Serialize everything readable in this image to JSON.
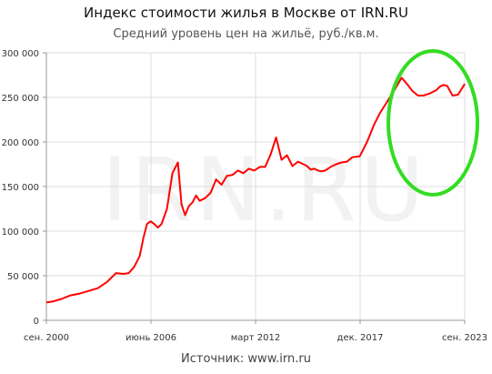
{
  "chart_data": {
    "type": "line",
    "title": "Индекс стоимости жилья в Москве от IRN.RU",
    "subtitle": "Средний уровень цен на жильё, руб./кв.м.",
    "source": "Источник: www.irn.ru",
    "watermark": "IRN.RU",
    "xlabel": "",
    "ylabel": "",
    "ylim": [
      0,
      300000
    ],
    "y_ticks": [
      0,
      50000,
      100000,
      150000,
      200000,
      250000,
      300000
    ],
    "y_tick_labels": [
      "0",
      "50 000",
      "100 000",
      "150 000",
      "200 000",
      "250 000",
      "300 000"
    ],
    "x_ticks": [
      2000.67,
      2006.42,
      2012.17,
      2017.92,
      2023.67
    ],
    "x_tick_labels": [
      "сен. 2000",
      "июнь 2006",
      "март 2012",
      "дек. 2017",
      "сен. 2023"
    ],
    "xlim": [
      2000.67,
      2023.67
    ],
    "grid": true,
    "line_color": "#ff0000",
    "highlight_color": "#33dd22",
    "series": [
      {
        "name": "",
        "x": [
          2000.67,
          2001.0,
          2001.5,
          2002.0,
          2002.5,
          2003.0,
          2003.5,
          2004.0,
          2004.5,
          2004.9,
          2005.2,
          2005.5,
          2005.8,
          2006.0,
          2006.2,
          2006.4,
          2006.6,
          2006.8,
          2007.0,
          2007.3,
          2007.6,
          2007.9,
          2008.1,
          2008.3,
          2008.5,
          2008.7,
          2008.9,
          2009.1,
          2009.4,
          2009.7,
          2010.0,
          2010.3,
          2010.6,
          2010.9,
          2011.2,
          2011.5,
          2011.8,
          2012.1,
          2012.4,
          2012.7,
          2013.0,
          2013.3,
          2013.6,
          2013.9,
          2014.2,
          2014.5,
          2014.8,
          2015.0,
          2015.2,
          2015.4,
          2015.6,
          2015.8,
          2016.0,
          2016.3,
          2016.6,
          2016.9,
          2017.2,
          2017.5,
          2017.9,
          2018.3,
          2018.7,
          2019.0,
          2019.4,
          2019.8,
          2020.2,
          2020.5,
          2020.8,
          2021.1,
          2021.4,
          2021.7,
          2021.9,
          2022.1,
          2022.3,
          2022.5,
          2022.7,
          2023.0,
          2023.3,
          2023.67
        ],
        "values": [
          20000,
          21000,
          24000,
          28000,
          30000,
          33000,
          36000,
          43000,
          53000,
          52000,
          53000,
          60000,
          72000,
          92000,
          108000,
          111000,
          108000,
          104000,
          108000,
          125000,
          165000,
          177000,
          130000,
          118000,
          128000,
          132000,
          140000,
          134000,
          137000,
          143000,
          158000,
          152000,
          162000,
          163000,
          168000,
          165000,
          170000,
          168000,
          172000,
          172000,
          186000,
          205000,
          180000,
          185000,
          173000,
          178000,
          175000,
          173000,
          169000,
          170000,
          168000,
          167000,
          168000,
          172000,
          175000,
          177000,
          178000,
          183000,
          184000,
          200000,
          220000,
          232000,
          245000,
          258000,
          272000,
          265000,
          257000,
          252000,
          252000,
          254000,
          256000,
          258000,
          262000,
          264000,
          263000,
          252000,
          253000,
          265000
        ]
      }
    ]
  }
}
